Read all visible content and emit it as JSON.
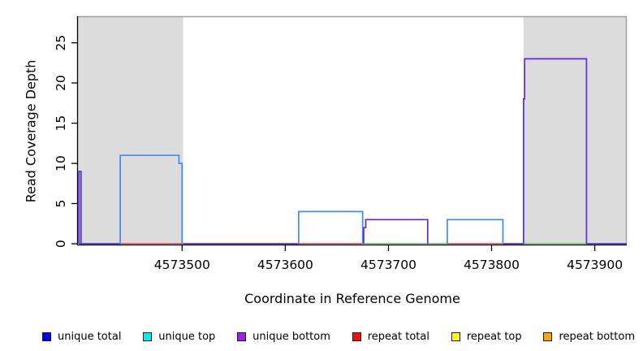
{
  "figure": {
    "xlabel": "Coordinate in Reference Genome",
    "ylabel": "Read Coverage Depth"
  },
  "legend": {
    "swatch_border": "#1a1a1a",
    "items": [
      {
        "label": "unique total",
        "color": "#0000ee",
        "icon": "unique-total-swatch"
      },
      {
        "label": "unique top",
        "color": "#00eeee",
        "icon": "unique-top-swatch"
      },
      {
        "label": "unique bottom",
        "color": "#a020f0",
        "icon": "unique-bottom-swatch"
      },
      {
        "label": "repeat total",
        "color": "#ee1111",
        "icon": "repeat-total-swatch"
      },
      {
        "label": "repeat top",
        "color": "#ffff00",
        "icon": "repeat-top-swatch"
      },
      {
        "label": "repeat bottom",
        "color": "#ffa500",
        "icon": "repeat-bottom-swatch"
      }
    ]
  },
  "chart_data": {
    "type": "line",
    "subtype": "step-coverage",
    "title": "",
    "xlabel": "Coordinate in Reference Genome",
    "ylabel": "Read Coverage Depth",
    "xlim": [
      4573399,
      4573931
    ],
    "ylim": [
      0,
      28.3
    ],
    "x_ticks": [
      4573500,
      4573600,
      4573700,
      4573800,
      4573900
    ],
    "y_ticks": [
      0,
      5,
      10,
      15,
      20,
      25
    ],
    "grid": false,
    "legend_position": "bottom",
    "colors": {
      "blue": "#3e8bf2",
      "purple": "#5b2be2",
      "red": "#e0506e",
      "green": "#6cc36c",
      "shading": "#dcdcdc",
      "frame": "#a0a0a0",
      "axis": "#000000"
    },
    "shaded_regions": [
      {
        "name": "shaded-region-left",
        "x0": 4573399,
        "x1": 4573501
      },
      {
        "name": "shaded-region-right",
        "x0": 4573831,
        "x1": 4573931
      }
    ],
    "segments": [
      {
        "name": "baseline-unique",
        "color": "purple",
        "points": [
          [
            4573400,
            0
          ],
          [
            4573440,
            0
          ]
        ]
      },
      {
        "name": "baseline-repeat",
        "color": "red",
        "points": [
          [
            4573440,
            0
          ],
          [
            4573501,
            0
          ]
        ]
      },
      {
        "name": "baseline-unique",
        "color": "purple",
        "points": [
          [
            4573501,
            0
          ],
          [
            4573613,
            0
          ]
        ]
      },
      {
        "name": "baseline-repeat",
        "color": "red",
        "points": [
          [
            4573613,
            0
          ],
          [
            4573675,
            0
          ]
        ]
      },
      {
        "name": "baseline-mixed",
        "color": "green",
        "points": [
          [
            4573676,
            0
          ],
          [
            4573757,
            0
          ]
        ]
      },
      {
        "name": "baseline-repeat",
        "color": "red",
        "points": [
          [
            4573757,
            0
          ],
          [
            4573811,
            0
          ]
        ]
      },
      {
        "name": "baseline-unique",
        "color": "purple",
        "points": [
          [
            4573811,
            0
          ],
          [
            4573831,
            0
          ]
        ]
      },
      {
        "name": "baseline-mixed",
        "color": "green",
        "points": [
          [
            4573831,
            0
          ],
          [
            4573892,
            0
          ]
        ]
      },
      {
        "name": "baseline-unique",
        "color": "purple",
        "points": [
          [
            4573892,
            0
          ],
          [
            4573931,
            0
          ]
        ]
      },
      {
        "name": "coverage-spike",
        "color": "purple",
        "points": [
          [
            4573400,
            0
          ],
          [
            4573400,
            9
          ],
          [
            4573402,
            9
          ],
          [
            4573402,
            0
          ]
        ]
      },
      {
        "name": "coverage-box-1",
        "color": "blue",
        "points": [
          [
            4573440,
            0
          ],
          [
            4573440,
            11
          ],
          [
            4573497,
            11
          ],
          [
            4573497,
            10
          ],
          [
            4573500,
            10
          ],
          [
            4573500,
            0
          ]
        ]
      },
      {
        "name": "coverage-box-2",
        "color": "blue",
        "points": [
          [
            4573613,
            0
          ],
          [
            4573613,
            4
          ],
          [
            4573675,
            4
          ],
          [
            4573675,
            0
          ]
        ]
      },
      {
        "name": "coverage-box-3",
        "color": "purple",
        "points": [
          [
            4573676,
            0
          ],
          [
            4573676,
            2
          ],
          [
            4573678,
            2
          ],
          [
            4573678,
            3
          ],
          [
            4573738,
            3
          ],
          [
            4573738,
            0
          ]
        ]
      },
      {
        "name": "coverage-box-4",
        "color": "blue",
        "points": [
          [
            4573757,
            0
          ],
          [
            4573757,
            3
          ],
          [
            4573811,
            3
          ],
          [
            4573811,
            0
          ]
        ]
      },
      {
        "name": "coverage-box-5",
        "color": "purple",
        "points": [
          [
            4573831,
            0
          ],
          [
            4573831,
            18
          ],
          [
            4573832,
            18
          ],
          [
            4573832,
            23
          ],
          [
            4573892,
            23
          ],
          [
            4573892,
            0
          ]
        ]
      }
    ]
  }
}
